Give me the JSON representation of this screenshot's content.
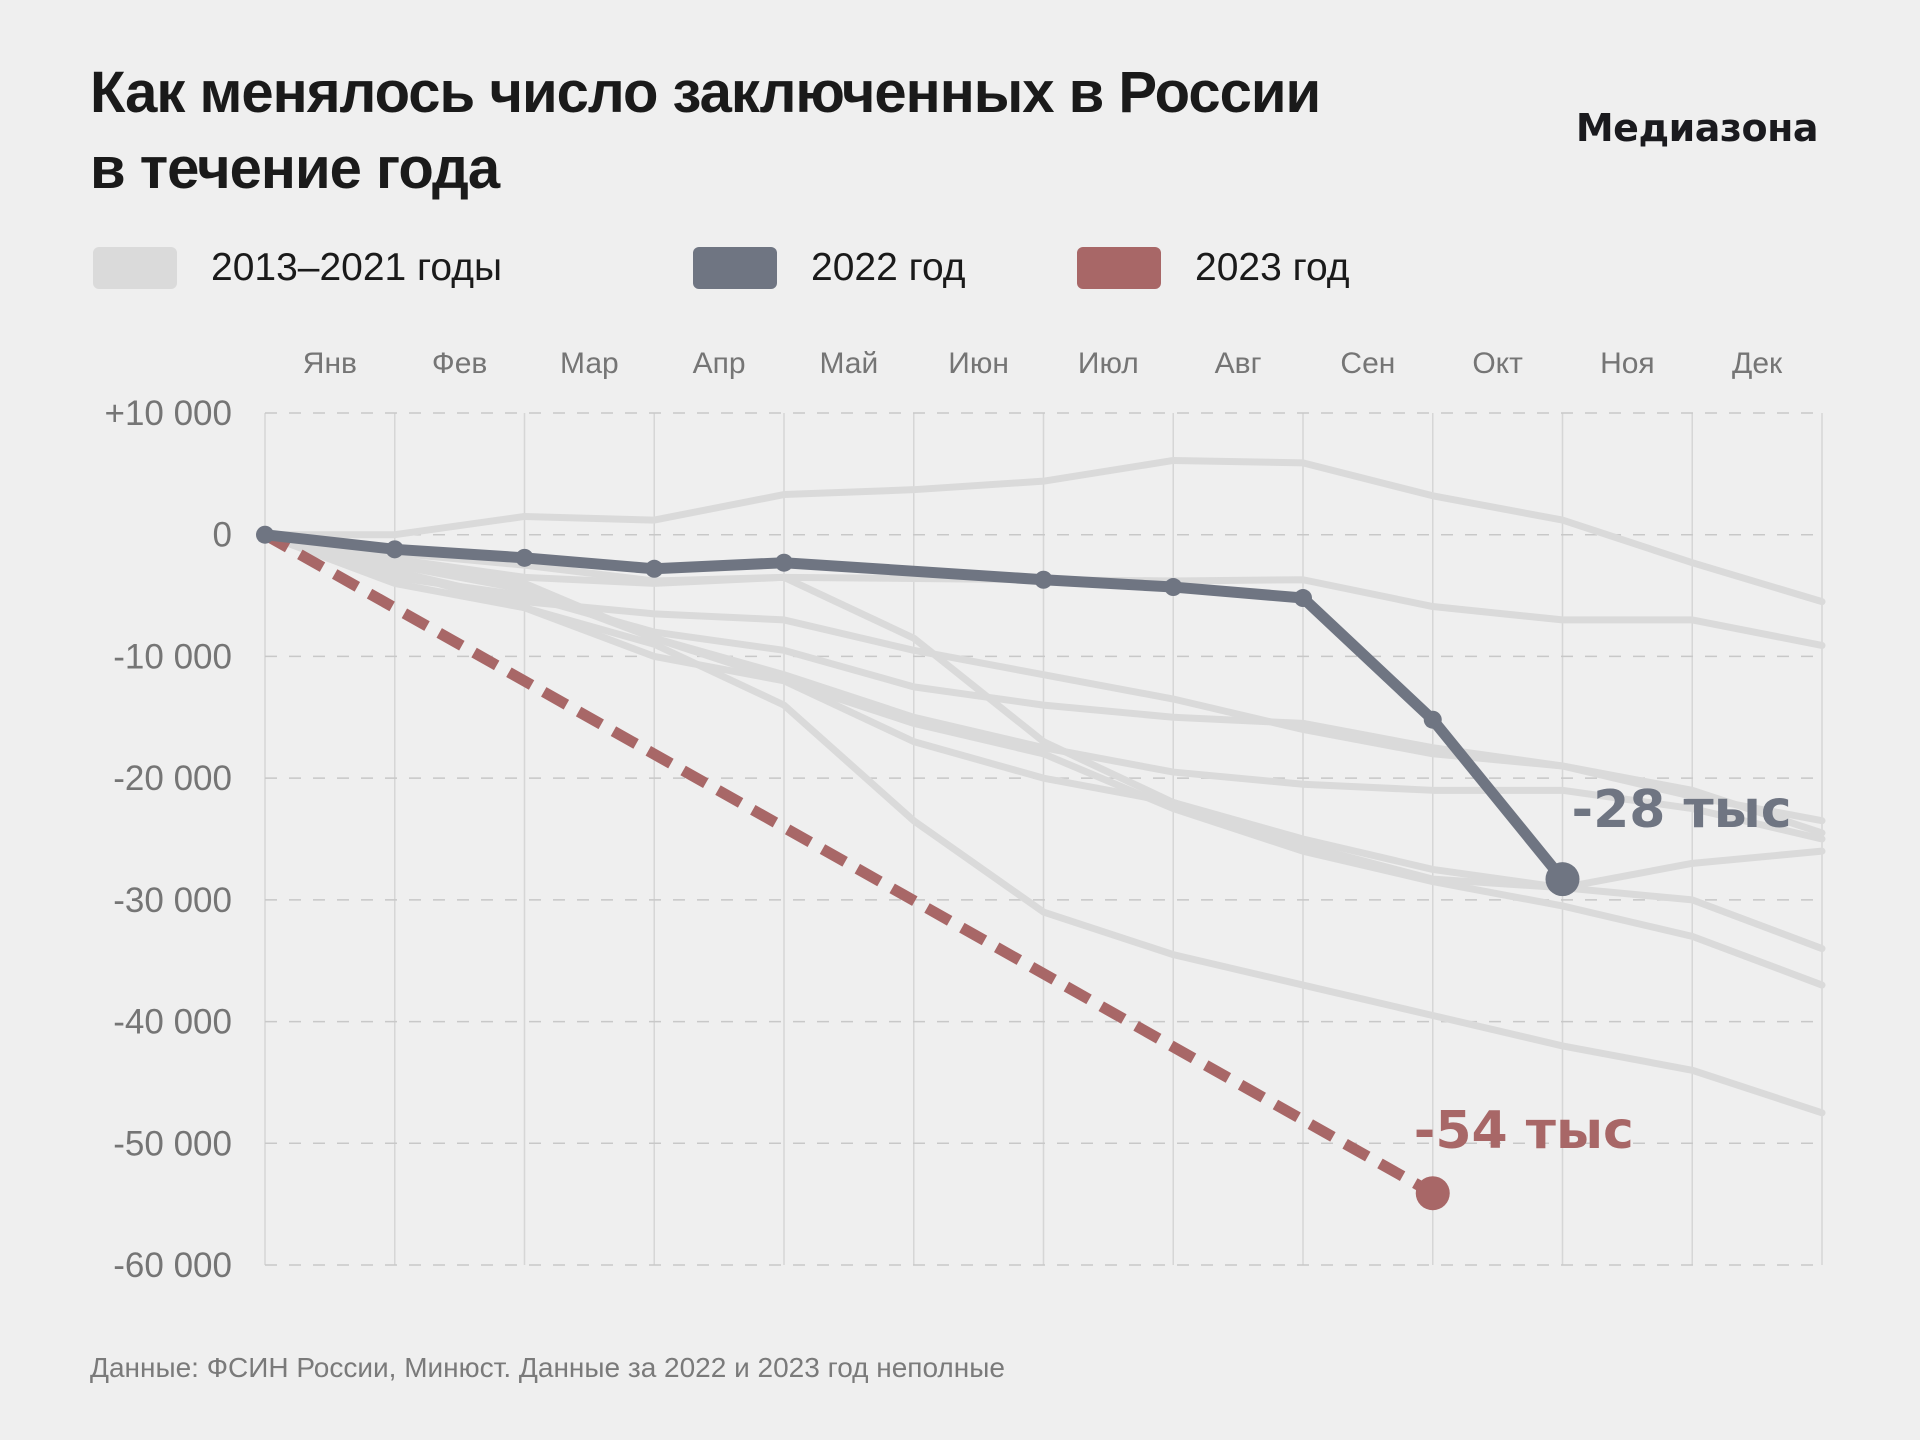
{
  "header": {
    "title_line1": "Как менялось число заключенных в России",
    "title_line2": "в течение года",
    "brand": "Медиазона"
  },
  "legend": [
    {
      "label": "2013–2021 годы",
      "color": "#dadada"
    },
    {
      "label": "2022 год",
      "color": "#6f7582"
    },
    {
      "label": "2023 год",
      "color": "#a86767"
    }
  ],
  "footer": "Данные: ФСИН России, Минюст. Данные за 2022 и 2023 год неполные",
  "colors": {
    "background": "#efefef",
    "history": "#dadada",
    "y2022": "#6f7582",
    "y2023": "#a86767",
    "grid": "#d6d6d6",
    "axis_text": "#757575"
  },
  "chart_data": {
    "type": "line",
    "title": "Как менялось число заключенных в России в течение года",
    "xlabel": "",
    "ylabel": "",
    "categories": [
      "Янв",
      "Фев",
      "Мар",
      "Апр",
      "Май",
      "Июн",
      "Июл",
      "Авг",
      "Сен",
      "Окт",
      "Ноя",
      "Дек"
    ],
    "y_ticks": [
      10000,
      0,
      -10000,
      -20000,
      -30000,
      -40000,
      -50000,
      -60000
    ],
    "y_tick_labels": [
      "+10 000",
      "0",
      "-10 000",
      "-20 000",
      "-30 000",
      "-40 000",
      "-50 000",
      "-60 000"
    ],
    "ylim": [
      -60000,
      10000
    ],
    "x_points_note": "13 points: start of each month Jan..Dec plus end of year",
    "grid": true,
    "legend_position": "top",
    "series": [
      {
        "name": "2013–2021 годы",
        "group": "history",
        "values": [
          0,
          0,
          1500,
          1200,
          3300,
          3700,
          4400,
          6100,
          5900,
          3200,
          1200,
          -2300,
          -5500
        ]
      },
      {
        "name": "2013–2021 годы",
        "group": "history",
        "values": [
          0,
          -1500,
          -2500,
          -3800,
          -3500,
          -3600,
          -3700,
          -3800,
          -3700,
          -5900,
          -7000,
          -7000,
          -9100
        ]
      },
      {
        "name": "2013–2021 годы",
        "group": "history",
        "values": [
          0,
          -2000,
          -3500,
          -4000,
          -3500,
          -8500,
          -17000,
          -22000,
          -25500,
          -28300,
          -29000,
          -27000,
          -26000
        ]
      },
      {
        "name": "2013–2021 годы",
        "group": "history",
        "values": [
          0,
          -3000,
          -5500,
          -6500,
          -7000,
          -9500,
          -11500,
          -13500,
          -16000,
          -18000,
          -19000,
          -21000,
          -24500
        ]
      },
      {
        "name": "2013–2021 годы",
        "group": "history",
        "values": [
          0,
          -3500,
          -5000,
          -8000,
          -9500,
          -12500,
          -14000,
          -15000,
          -15500,
          -17500,
          -19000,
          -21500,
          -23500
        ]
      },
      {
        "name": "2013–2021 годы",
        "group": "history",
        "values": [
          0,
          -2500,
          -4500,
          -8500,
          -11500,
          -15000,
          -17500,
          -19500,
          -20500,
          -21000,
          -21000,
          -22500,
          -25000
        ]
      },
      {
        "name": "2013–2021 годы",
        "group": "history",
        "values": [
          0,
          -4000,
          -6000,
          -10000,
          -12000,
          -17000,
          -20000,
          -22000,
          -25000,
          -27500,
          -29000,
          -30000,
          -34000
        ]
      },
      {
        "name": "2013–2021 годы",
        "group": "history",
        "values": [
          0,
          -3000,
          -6000,
          -9000,
          -14000,
          -23500,
          -31000,
          -34500,
          -37000,
          -39500,
          -42000,
          -44000,
          -47500
        ]
      },
      {
        "name": "2013–2021 годы",
        "group": "history",
        "values": [
          0,
          -2500,
          -4000,
          -8500,
          -12000,
          -15500,
          -18000,
          -22500,
          -26000,
          -28500,
          -30500,
          -33000,
          -37000
        ]
      },
      {
        "name": "2022 год",
        "group": "y2022",
        "points": [
          [
            0,
            0
          ],
          [
            1,
            -1200
          ],
          [
            2,
            -1900
          ],
          [
            3,
            -2800
          ],
          [
            4,
            -2300
          ],
          [
            6,
            -3700
          ],
          [
            7,
            -4300
          ],
          [
            8,
            -5200
          ],
          [
            9,
            -15200
          ],
          [
            10,
            -28300
          ]
        ],
        "end_label": "-28 тыс"
      },
      {
        "name": "2023 год",
        "group": "y2023",
        "dashed": true,
        "points": [
          [
            0,
            0
          ],
          [
            9,
            -54100
          ]
        ],
        "end_label": "-54 тыс"
      }
    ]
  }
}
